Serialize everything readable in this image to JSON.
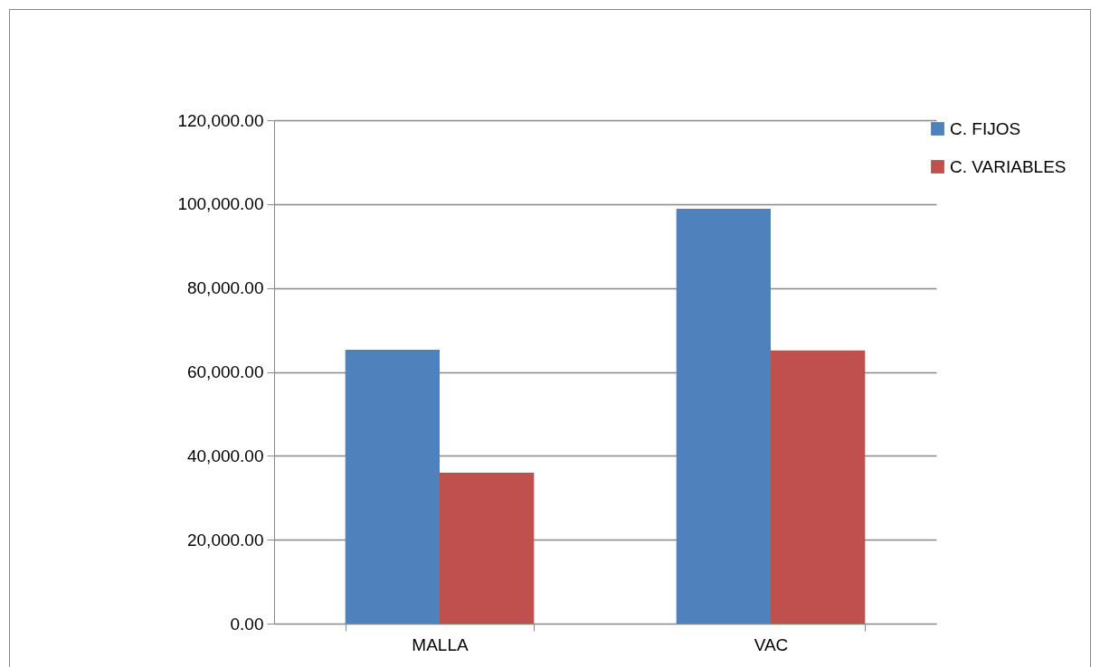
{
  "chart_data": {
    "type": "bar",
    "categories": [
      "MALLA",
      "VAC"
    ],
    "series": [
      {
        "name": "C. FIJOS",
        "color": "#4f81bd",
        "values": [
          65300,
          98900
        ]
      },
      {
        "name": "C. VARIABLES",
        "color": "#c0504d",
        "values": [
          36000,
          65100
        ]
      }
    ],
    "ylim": [
      0,
      120000
    ],
    "yticks": [
      {
        "value": 0,
        "label": "0.00"
      },
      {
        "value": 20000,
        "label": "20,000.00"
      },
      {
        "value": 40000,
        "label": "40,000.00"
      },
      {
        "value": 60000,
        "label": "60,000.00"
      },
      {
        "value": 80000,
        "label": "80,000.00"
      },
      {
        "value": 100000,
        "label": "100,000.00"
      },
      {
        "value": 120000,
        "label": "120,000.00"
      }
    ],
    "grid": "y",
    "legend": "right"
  }
}
